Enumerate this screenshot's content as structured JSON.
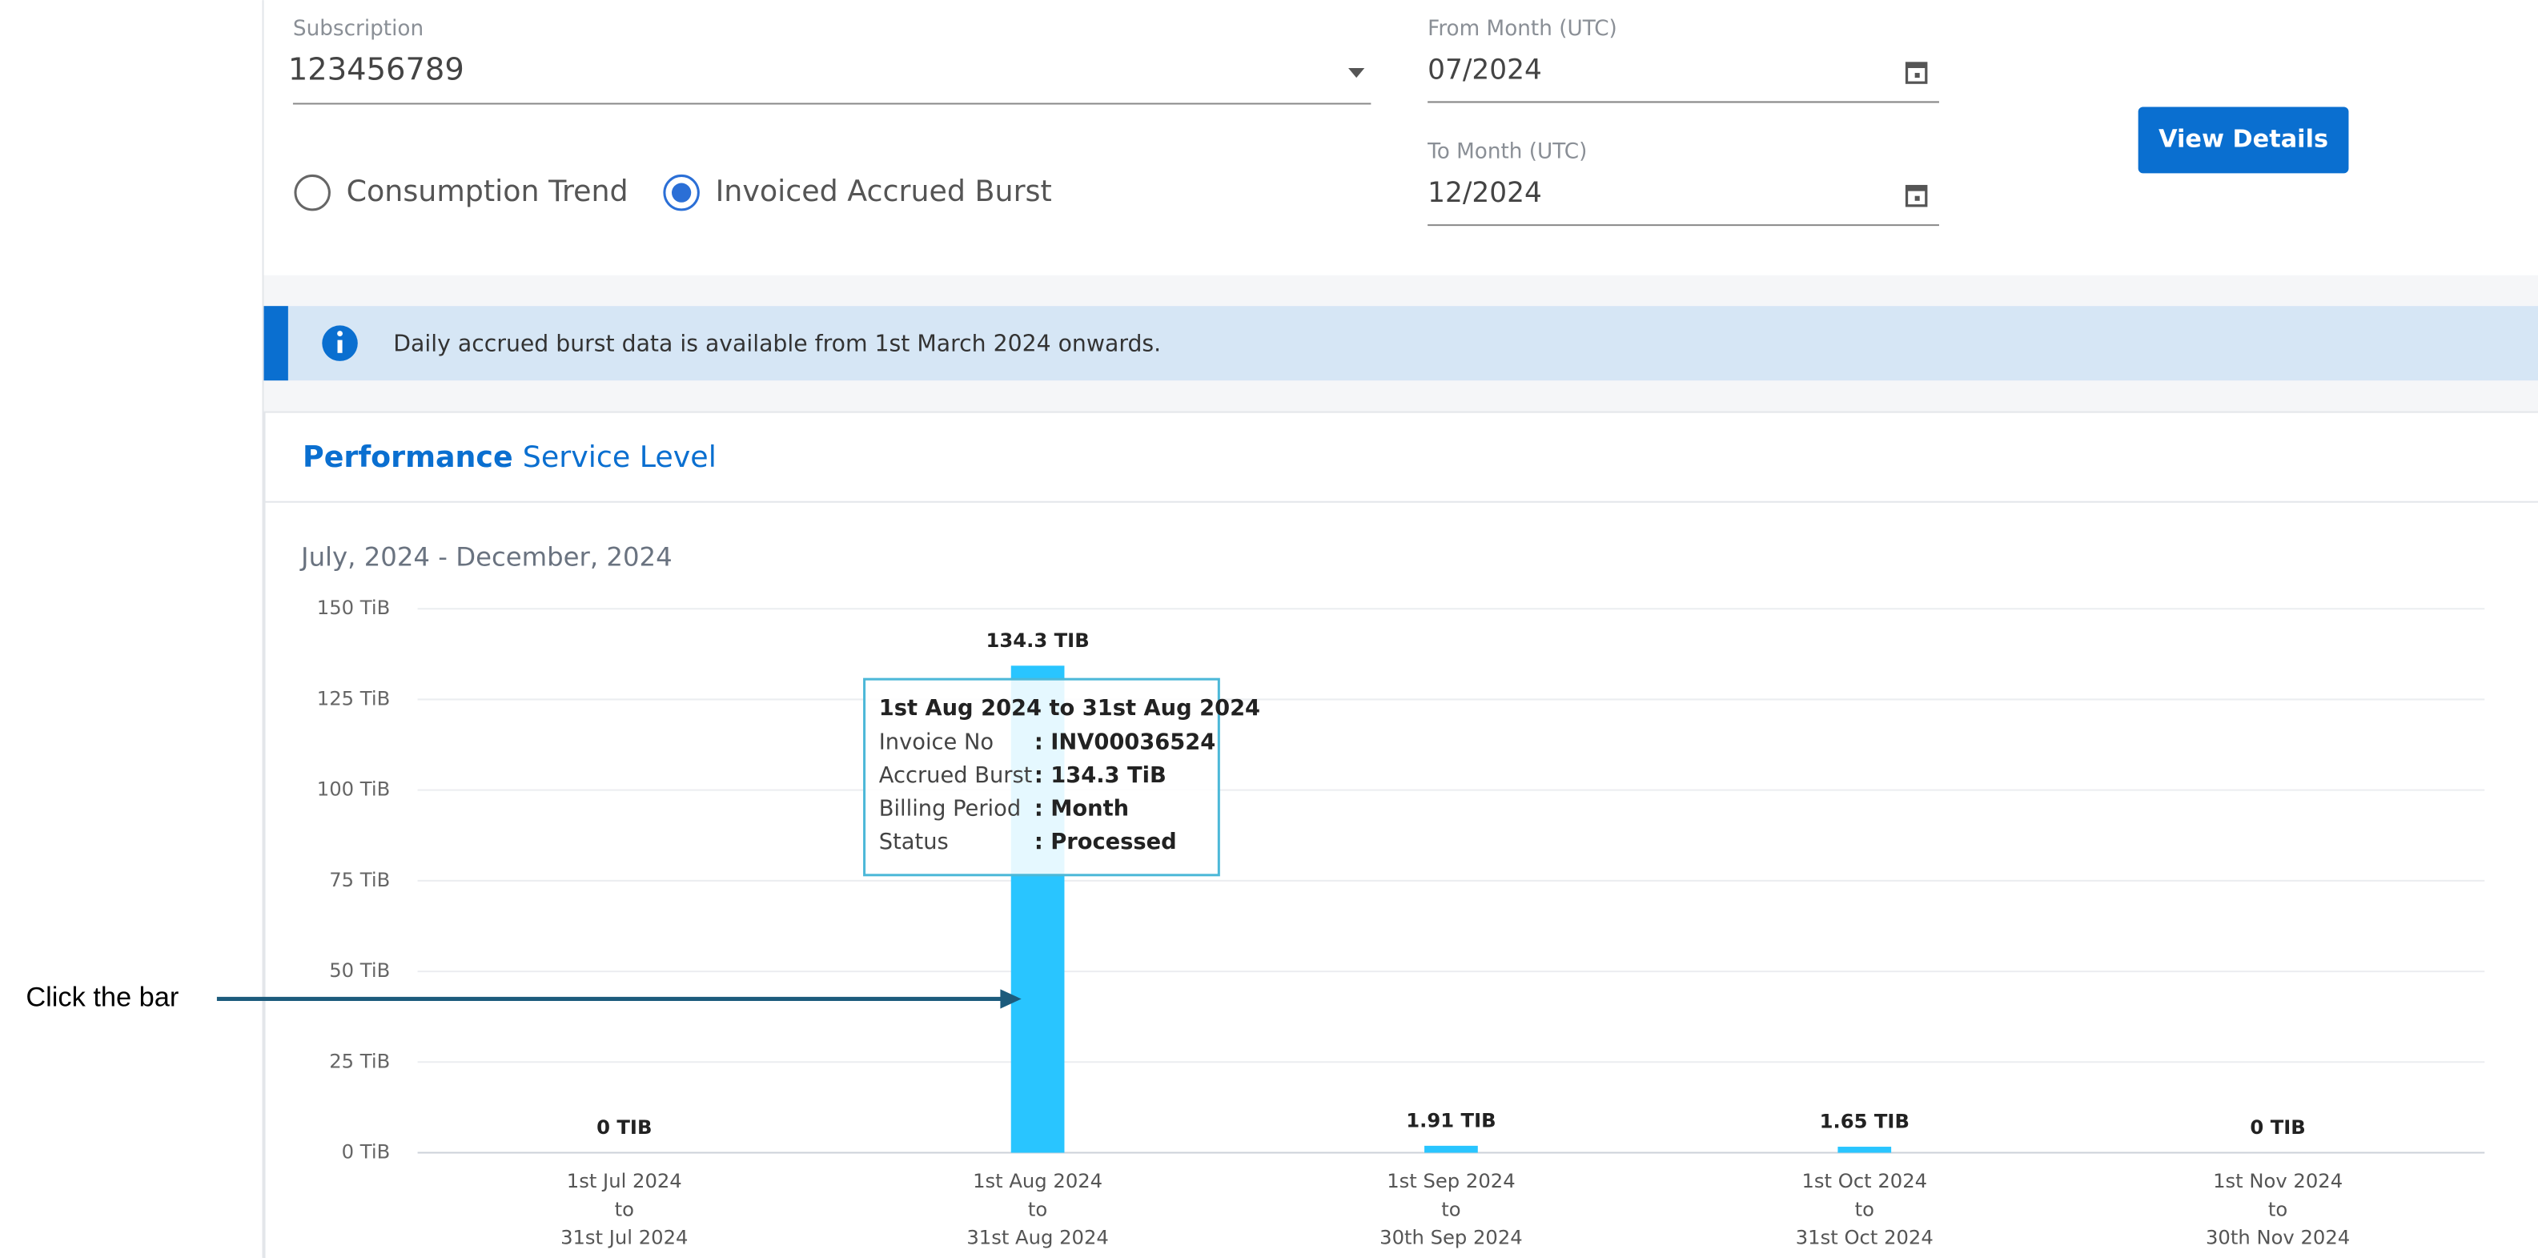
{
  "form": {
    "subscription_label": "Subscription",
    "subscription_value": "123456789",
    "from_label": "From Month (UTC)",
    "from_value": "07/2024",
    "to_label": "To Month (UTC)",
    "to_value": "12/2024",
    "button": "View Details",
    "radio_1": "Consumption Trend",
    "radio_2": "Invoiced Accrued Burst"
  },
  "info": "Daily accrued burst data is available from 1st March 2024 onwards.",
  "card": {
    "title_bold": "Performance",
    "title_rest": "Service Level"
  },
  "chart_data": {
    "type": "bar",
    "subtitle": "July, 2024 - December, 2024",
    "categories": [
      [
        "1st Jul 2024",
        "to",
        "31st Jul 2024"
      ],
      [
        "1st Aug 2024",
        "to",
        "31st Aug 2024"
      ],
      [
        "1st Sep 2024",
        "to",
        "30th Sep 2024"
      ],
      [
        "1st Oct 2024",
        "to",
        "31st Oct 2024"
      ],
      [
        "1st Nov 2024",
        "to",
        "30th Nov 2024"
      ]
    ],
    "values": [
      0,
      134.3,
      1.91,
      1.65,
      0
    ],
    "value_labels": [
      "0 TIB",
      "134.3 TIB",
      "1.91 TIB",
      "1.65 TIB",
      "0 TIB"
    ],
    "color": "#29c5ff",
    "ylim": [
      0,
      150
    ],
    "yticks": [
      {
        "value": 0,
        "label": "0 TiB"
      },
      {
        "value": 25,
        "label": "25 TiB"
      },
      {
        "value": 50,
        "label": "50 TiB"
      },
      {
        "value": 75,
        "label": "75 TiB"
      },
      {
        "value": 100,
        "label": "100 TiB"
      },
      {
        "value": 125,
        "label": "125 TiB"
      },
      {
        "value": 150,
        "label": "150 TiB"
      }
    ],
    "grid": true
  },
  "tooltip": {
    "title": "1st Aug 2024 to 31st Aug 2024",
    "rows": [
      [
        "Invoice No",
        ": INV00036524"
      ],
      [
        "Accrued Burst",
        ": 134.3 TiB"
      ],
      [
        "Billing Period",
        ": Month"
      ],
      [
        "Status",
        ": Processed"
      ]
    ]
  },
  "annotation": "Click the bar"
}
